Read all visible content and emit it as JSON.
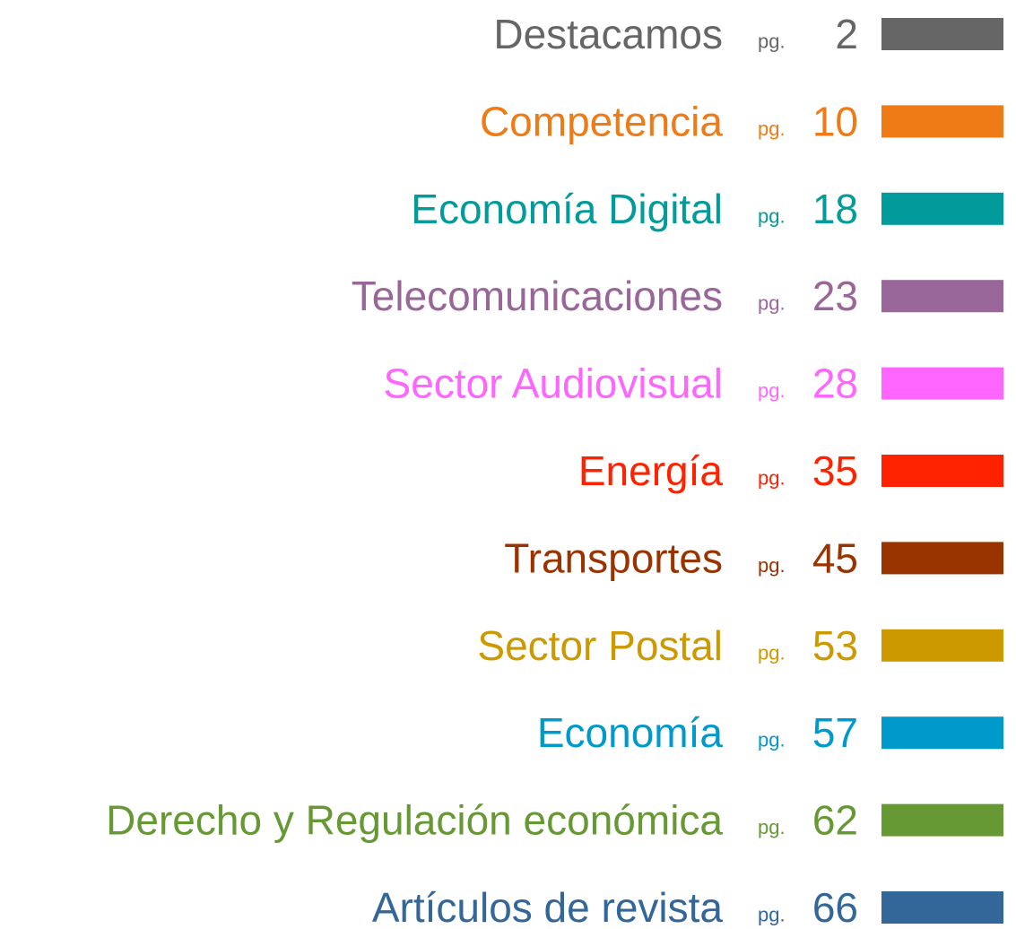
{
  "page_prefix": "pg.",
  "entries": [
    {
      "label": "Destacamos",
      "page": 2,
      "color": "#666666"
    },
    {
      "label": "Competencia",
      "page": 10,
      "color": "#ee7b15"
    },
    {
      "label": "Economía Digital",
      "page": 18,
      "color": "#009b9a"
    },
    {
      "label": "Telecomunicaciones",
      "page": 23,
      "color": "#996699"
    },
    {
      "label": "Sector Audiovisual",
      "page": 28,
      "color": "#ff66ff"
    },
    {
      "label": "Energía",
      "page": 35,
      "color": "#ff2200"
    },
    {
      "label": "Transportes",
      "page": 45,
      "color": "#993300"
    },
    {
      "label": "Sector Postal",
      "page": 53,
      "color": "#cc9900"
    },
    {
      "label": "Economía",
      "page": 57,
      "color": "#0099cc"
    },
    {
      "label": "Derecho y Regulación económica",
      "page": 62,
      "color": "#669933"
    },
    {
      "label": "Artículos de revista",
      "page": 66,
      "color": "#336699"
    }
  ]
}
